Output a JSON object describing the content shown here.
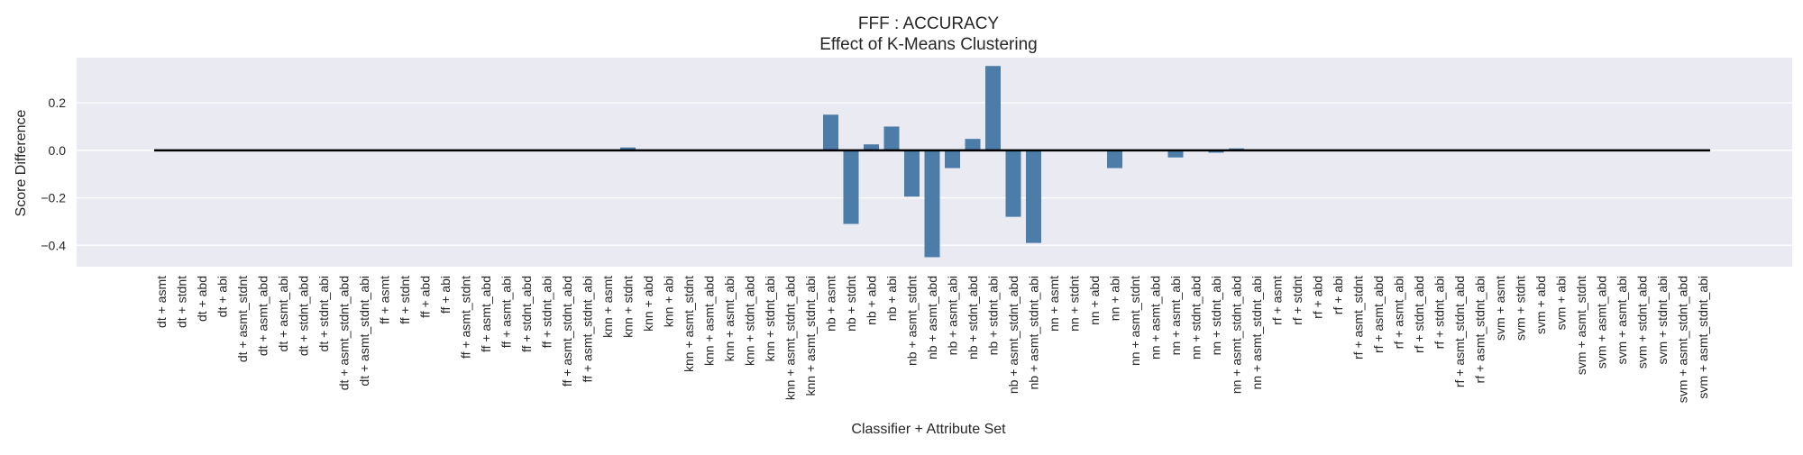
{
  "chart_data": {
    "type": "bar",
    "title": "FFF : ACCURACY",
    "subtitle": "Effect of K-Means Clustering",
    "xlabel": "Classifier + Attribute Set",
    "ylabel": "Score Difference",
    "ylim": [
      -0.49,
      0.39
    ],
    "yticks": [
      -0.4,
      -0.2,
      0.0,
      0.2
    ],
    "ytick_labels": [
      "−0.4",
      "−0.2",
      "0.0",
      "0.2"
    ],
    "grid": true,
    "baseline": 0,
    "colors": {
      "background": "#EAEAF2",
      "bar": "#4C7DA8",
      "gridline": "#FFFFFF",
      "baseline": "#000000"
    },
    "categories": [
      "dt + asmt",
      "dt + stdnt",
      "dt + abd",
      "dt + abi",
      "dt + asmt_stdnt",
      "dt + asmt_abd",
      "dt + asmt_abi",
      "dt + stdnt_abd",
      "dt + stdnt_abi",
      "dt + asmt_stdnt_abd",
      "dt + asmt_stdnt_abi",
      "ff + asmt",
      "ff + stdnt",
      "ff + abd",
      "ff + abi",
      "ff + asmt_stdnt",
      "ff + asmt_abd",
      "ff + asmt_abi",
      "ff + stdnt_abd",
      "ff + stdnt_abi",
      "ff + asmt_stdnt_abd",
      "ff + asmt_stdnt_abi",
      "knn + asmt",
      "knn + stdnt",
      "knn + abd",
      "knn + abi",
      "knn + asmt_stdnt",
      "knn + asmt_abd",
      "knn + asmt_abi",
      "knn + stdnt_abd",
      "knn + stdnt_abi",
      "knn + asmt_stdnt_abd",
      "knn + asmt_stdnt_abi",
      "nb + asmt",
      "nb + stdnt",
      "nb + abd",
      "nb + abi",
      "nb + asmt_stdnt",
      "nb + asmt_abd",
      "nb + asmt_abi",
      "nb + stdnt_abd",
      "nb + stdnt_abi",
      "nb + asmt_stdnt_abd",
      "nb + asmt_stdnt_abi",
      "nn + asmt",
      "nn + stdnt",
      "nn + abd",
      "nn + abi",
      "nn + asmt_stdnt",
      "nn + asmt_abd",
      "nn + asmt_abi",
      "nn + stdnt_abd",
      "nn + stdnt_abi",
      "nn + asmt_stdnt_abd",
      "nn + asmt_stdnt_abi",
      "rf + asmt",
      "rf + stdnt",
      "rf + abd",
      "rf + abi",
      "rf + asmt_stdnt",
      "rf + asmt_abd",
      "rf + asmt_abi",
      "rf + stdnt_abd",
      "rf + stdnt_abi",
      "rf + asmt_stdnt_abd",
      "rf + asmt_stdnt_abi",
      "svm + asmt",
      "svm + stdnt",
      "svm + abd",
      "svm + abi",
      "svm + asmt_stdnt",
      "svm + asmt_abd",
      "svm + asmt_abi",
      "svm + stdnt_abd",
      "svm + stdnt_abi",
      "svm + asmt_stdnt_abd",
      "svm + asmt_stdnt_abi"
    ],
    "values": [
      0,
      0,
      0,
      0,
      0,
      0,
      0,
      0,
      0,
      0,
      0,
      0,
      0,
      0,
      0,
      0,
      0,
      0,
      0,
      0,
      0,
      0,
      0,
      0.012,
      0,
      0,
      0,
      0,
      0,
      0,
      0,
      0,
      0,
      0.15,
      -0.31,
      0.025,
      0.1,
      -0.195,
      -0.45,
      -0.075,
      0.048,
      0.355,
      -0.28,
      -0.39,
      0,
      0,
      0,
      -0.075,
      0,
      0,
      -0.03,
      0,
      -0.01,
      0.008,
      0,
      0,
      0,
      0,
      0,
      0,
      0,
      0,
      0,
      0,
      0,
      0,
      0,
      0,
      0,
      0,
      0,
      0,
      0,
      0,
      0,
      0,
      0
    ]
  }
}
